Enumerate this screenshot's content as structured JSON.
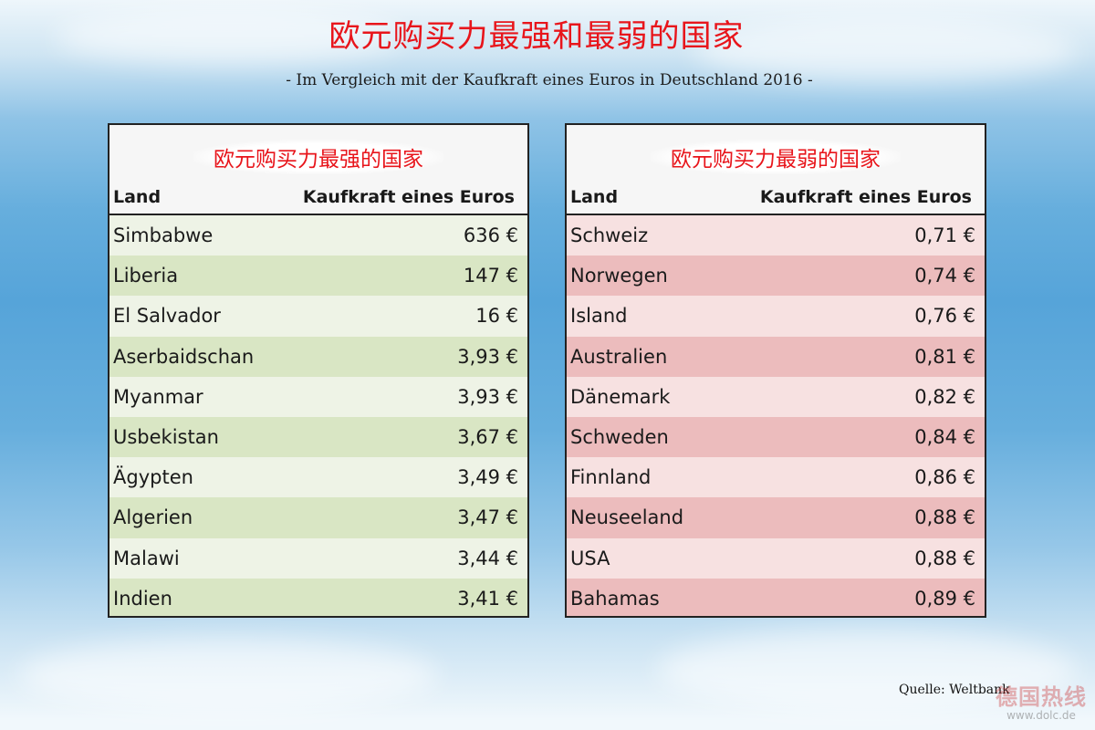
{
  "title": "欧元购买力最强和最弱的国家",
  "subtitle": "- Im Vergleich mit der Kaufkraft eines Euros in Deutschland 2016 -",
  "strongest": {
    "title": "欧元购买力最强的国家",
    "col_land": "Land",
    "col_value": "Kaufkraft eines Euros",
    "rows": [
      {
        "land": "Simbabwe",
        "value": "636 €"
      },
      {
        "land": "Liberia",
        "value": "147 €"
      },
      {
        "land": "El Salvador",
        "value": "16 €"
      },
      {
        "land": "Aserbaidschan",
        "value": "3,93 €"
      },
      {
        "land": "Myanmar",
        "value": "3,93 €"
      },
      {
        "land": "Usbekistan",
        "value": "3,67 €"
      },
      {
        "land": "Ägypten",
        "value": "3,49 €"
      },
      {
        "land": "Algerien",
        "value": "3,47 €"
      },
      {
        "land": "Malawi",
        "value": "3,44 €"
      },
      {
        "land": "Indien",
        "value": "3,41 €"
      }
    ]
  },
  "weakest": {
    "title": "欧元购买力最弱的国家",
    "col_land": "Land",
    "col_value": "Kaufkraft eines Euros",
    "rows": [
      {
        "land": "Schweiz",
        "value": "0,71 €"
      },
      {
        "land": "Norwegen",
        "value": "0,74 €"
      },
      {
        "land": "Island",
        "value": "0,76 €"
      },
      {
        "land": "Australien",
        "value": "0,81 €"
      },
      {
        "land": "Dänemark",
        "value": "0,82 €"
      },
      {
        "land": "Schweden",
        "value": "0,84 €"
      },
      {
        "land": "Finnland",
        "value": "0,86 €"
      },
      {
        "land": "Neuseeland",
        "value": "0,88 €"
      },
      {
        "land": "USA",
        "value": "0,88 €"
      },
      {
        "land": "Bahamas",
        "value": "0,89 €"
      }
    ]
  },
  "source": "Quelle: Weltbank",
  "watermark": {
    "text": "德国热线",
    "url": "www.dolc.de"
  },
  "colors": {
    "title_red": "#e8151b",
    "green_light": "#eef3e6",
    "green_dark": "#d9e6c4",
    "pink_light": "#f7e1e1",
    "pink_dark": "#ecbcbd"
  }
}
